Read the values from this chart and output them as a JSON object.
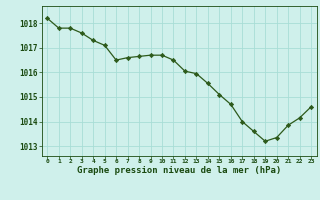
{
  "x": [
    0,
    1,
    2,
    3,
    4,
    5,
    6,
    7,
    8,
    9,
    10,
    11,
    12,
    13,
    14,
    15,
    16,
    17,
    18,
    19,
    20,
    21,
    22,
    23
  ],
  "y": [
    1018.2,
    1017.8,
    1017.8,
    1017.6,
    1017.3,
    1017.1,
    1016.5,
    1016.6,
    1016.65,
    1016.7,
    1016.7,
    1016.5,
    1016.05,
    1015.95,
    1015.55,
    1015.1,
    1014.7,
    1014.0,
    1013.6,
    1013.2,
    1013.35,
    1013.85,
    1014.15,
    1014.6
  ],
  "line_color": "#2d5a1b",
  "marker": "D",
  "marker_size": 2.2,
  "bg_color": "#cff0eb",
  "grid_color": "#a8ddd6",
  "xlabel": "Graphe pression niveau de la mer (hPa)",
  "xlabel_color": "#1a4a10",
  "tick_color": "#1a4a10",
  "yticks": [
    1013,
    1014,
    1015,
    1016,
    1017,
    1018
  ],
  "xticks": [
    0,
    1,
    2,
    3,
    4,
    5,
    6,
    7,
    8,
    9,
    10,
    11,
    12,
    13,
    14,
    15,
    16,
    17,
    18,
    19,
    20,
    21,
    22,
    23
  ],
  "ylim": [
    1012.6,
    1018.7
  ],
  "xlim": [
    -0.5,
    23.5
  ]
}
